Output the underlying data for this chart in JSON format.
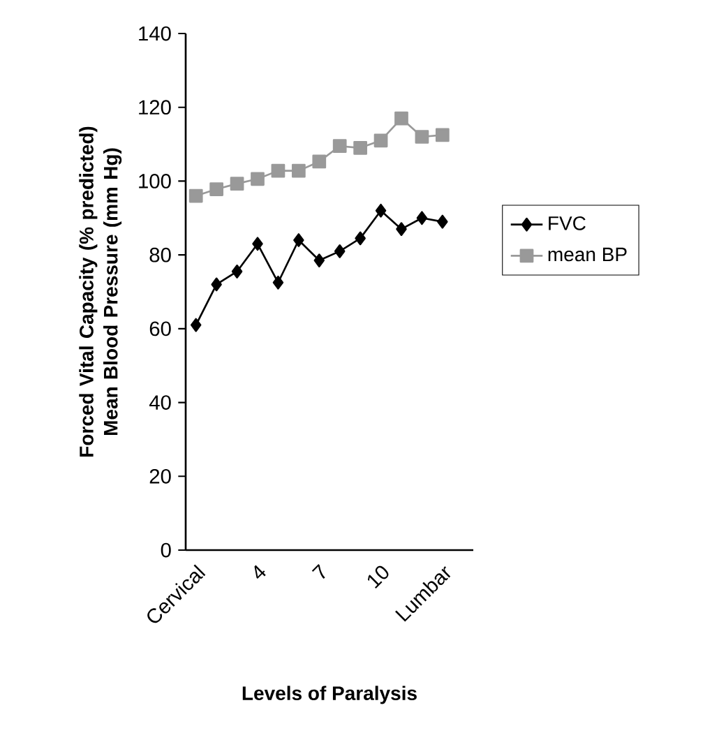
{
  "chart_data": {
    "type": "line",
    "xlabel": "Levels of Paralysis",
    "ylabel": "Forced Vital Capacity (% predicted) Mean Blood Pressure (mm Hg)",
    "categories": [
      "Cervical",
      null,
      null,
      "4",
      null,
      null,
      "7",
      null,
      null,
      "10",
      null,
      null,
      "Lumbar",
      null
    ],
    "series": [
      {
        "name": "FVC",
        "color": "#000000",
        "marker": "diamond",
        "values": [
          61,
          72,
          75.5,
          83,
          72.5,
          84,
          78.5,
          81,
          84.5,
          92,
          87,
          90,
          89,
          null
        ]
      },
      {
        "name": "mean BP",
        "color": "#999999",
        "marker": "square",
        "values": [
          96,
          97.8,
          99.3,
          100.6,
          102.8,
          102.8,
          105.3,
          109.5,
          109,
          111,
          117,
          112,
          112.5,
          null
        ]
      }
    ],
    "ylim": [
      0,
      140
    ],
    "yticks": [
      0,
      20,
      40,
      60,
      80,
      100,
      120,
      140
    ],
    "legend": "right",
    "line_style": "solid",
    "grid": false
  }
}
